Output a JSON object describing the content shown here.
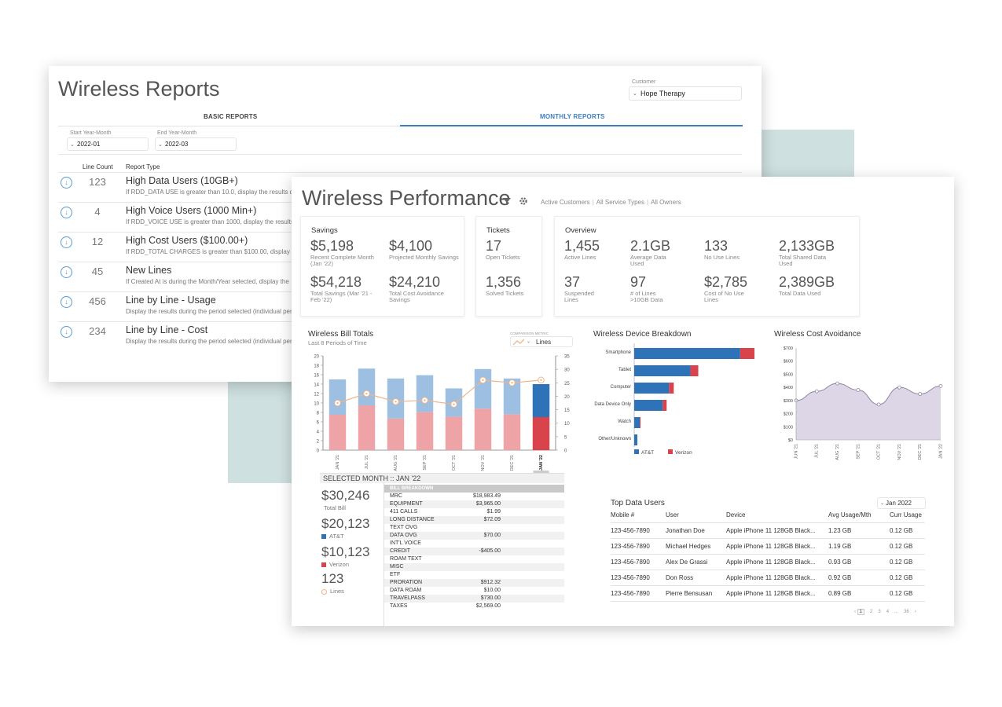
{
  "reports": {
    "title": "Wireless Reports",
    "customer_label": "Customer",
    "customer_value": "Hope Therapy",
    "tabs": [
      "BASIC REPORTS",
      "MONTHLY REPORTS"
    ],
    "start_label": "Start Year-Month",
    "start_value": "2022-01",
    "end_label": "End Year-Month",
    "end_value": "2022-03",
    "col_line_count": "Line Count",
    "col_report_type": "Report Type",
    "rows": [
      {
        "count": "123",
        "title": "High Data Users (10GB+)",
        "desc": "If RDD_DATA USE is greater than 10.0, display the results du"
      },
      {
        "count": "4",
        "title": "High Voice Users (1000 Min+)",
        "desc": "If RDD_VOICE USE is greater than 1000, display the results d"
      },
      {
        "count": "12",
        "title": "High Cost Users ($100.00+)",
        "desc": "If RDD_TOTAL CHARGES is greater than $100.00, display th"
      },
      {
        "count": "45",
        "title": "New Lines",
        "desc": "If Created At is during the Month/Year selected, display the"
      },
      {
        "count": "456",
        "title": "Line by Line - Usage",
        "desc": "Display the results during the period selected (individual per"
      },
      {
        "count": "234",
        "title": "Line by Line - Cost",
        "desc": "Display the results during the period selected (individual per"
      }
    ]
  },
  "perf": {
    "title": "Wireless Performance",
    "filters": [
      "Active Customers",
      "All Service Types",
      "All Owners"
    ],
    "savings": {
      "title": "Savings",
      "stats": [
        {
          "value": "$5,198",
          "label": "Recent Complete Month (Jan '22)"
        },
        {
          "value": "$4,100",
          "label": "Projected Monthly Savings"
        },
        {
          "value": "$54,218",
          "label": "Total Savings (Mar '21 - Feb '22)"
        },
        {
          "value": "$24,210",
          "label": "Total Cost Avoidance Savings"
        }
      ]
    },
    "tickets": {
      "title": "Tickets",
      "stats": [
        {
          "value": "17",
          "label": "Open Tickets"
        },
        {
          "value": "1,356",
          "label": "Solved Tickets"
        }
      ]
    },
    "overview": {
      "title": "Overview",
      "stats": [
        {
          "value": "1,455",
          "label": "Active Lines"
        },
        {
          "value": "2.1GB",
          "label": "Average Data Used"
        },
        {
          "value": "133",
          "label": "No Use Lines"
        },
        {
          "value": "2,133GB",
          "label": "Total Shared Data Used"
        },
        {
          "value": "37",
          "label": "Suspended Lines"
        },
        {
          "value": "97",
          "label": "# of Lines >10GB Data"
        },
        {
          "value": "$2,785",
          "label": "Cost of No Use Lines"
        },
        {
          "value": "2,389GB",
          "label": "Total Data Used"
        }
      ]
    },
    "bill": {
      "title": "Wireless Bill Totals",
      "subtitle": "Last 8 Periods of Time",
      "comparison_label": "COMPARISON METRIC",
      "comparison_value": "Lines",
      "selected_month": "SELECTED MONTH :: JAN '22",
      "total_bill": "$30,246",
      "total_bill_label": "Total Bill",
      "att_value": "$20,123",
      "att_label": "AT&T",
      "verizon_value": "$10,123",
      "verizon_label": "Verizon",
      "lines_value": "123",
      "lines_label": "Lines",
      "breakdown_title": "BILL BREAKDOWN",
      "breakdown": [
        {
          "k": "MRC",
          "v": "$18,983.49"
        },
        {
          "k": "EQUIPMENT",
          "v": "$3,965.00"
        },
        {
          "k": "411 CALLS",
          "v": "$1.99"
        },
        {
          "k": "LONG DISTANCE",
          "v": "$72.09"
        },
        {
          "k": "TEXT OVG",
          "v": ""
        },
        {
          "k": "DATA OVG",
          "v": "$70.00"
        },
        {
          "k": "INT'L VOICE",
          "v": ""
        },
        {
          "k": "CREDIT",
          "v": "-$405.00"
        },
        {
          "k": "ROAM TEXT",
          "v": ""
        },
        {
          "k": "MISC",
          "v": ""
        },
        {
          "k": "ETF",
          "v": ""
        },
        {
          "k": "PRORATION",
          "v": "$912.32"
        },
        {
          "k": "DATA ROAM",
          "v": "$10.00"
        },
        {
          "k": "TRAVELPASS",
          "v": "$730.00"
        },
        {
          "k": "TAXES",
          "v": "$2,569.00"
        }
      ]
    },
    "device_title": "Wireless Device Breakdown",
    "avoid_title": "Wireless Cost Avoidance",
    "top_users": {
      "title": "Top Data Users",
      "period": "Jan 2022",
      "columns": [
        "Mobile #",
        "User",
        "Device",
        "Avg Usage/Mth",
        "Curr Usage"
      ],
      "rows": [
        [
          "123-456-7890",
          "Jonathan Doe",
          "Apple iPhone 11 128GB Black...",
          "1.23 GB",
          "0.12 GB"
        ],
        [
          "123-456-7890",
          "Michael Hedges",
          "Apple iPhone 11 128GB Black...",
          "1.19 GB",
          "0.12 GB"
        ],
        [
          "123-456-7890",
          "Alex De Grassi",
          "Apple iPhone 11 128GB Black...",
          "0.93 GB",
          "0.12 GB"
        ],
        [
          "123-456-7890",
          "Don Ross",
          "Apple iPhone 11 128GB Black...",
          "0.92 GB",
          "0.12 GB"
        ],
        [
          "123-456-7890",
          "Pierre Bensusan",
          "Apple iPhone 11 128GB Black...",
          "0.89 GB",
          "0.12 GB"
        ]
      ],
      "pages": [
        "1",
        "2",
        "3",
        "4",
        "...",
        "36"
      ]
    },
    "colors": {
      "att": "#2e73b8",
      "verizon": "#d9434b",
      "att_light": "#9dc0e2",
      "verizon_light": "#eea4a7",
      "line": "#f0b48a",
      "area": "#ddd6e6",
      "area_line": "#8f84a5"
    }
  },
  "chart_data": [
    {
      "type": "bar",
      "title": "Wireless Bill Totals",
      "subtitle": "Last 8 Periods of Time",
      "categories": [
        "JAN '21",
        "JUL '21",
        "AUG '21",
        "SEP '21",
        "OCT '21",
        "NOV '21",
        "DEC '21",
        "JAN '22"
      ],
      "stacked": true,
      "series": [
        {
          "name": "Verizon",
          "values": [
            7.5,
            9.5,
            6.7,
            8.1,
            7.1,
            8.8,
            7.6,
            7.0
          ]
        },
        {
          "name": "AT&T",
          "values": [
            7.5,
            7.8,
            8.5,
            7.8,
            6.0,
            8.4,
            7.6,
            7.0
          ]
        },
        {
          "name": "Lines",
          "axis": "right",
          "type": "line",
          "values": [
            17.5,
            21.0,
            18.0,
            18.5,
            17.0,
            26.0,
            25.0,
            26.0
          ]
        }
      ],
      "yticks": [
        0,
        2,
        4,
        6,
        8,
        10,
        12,
        14,
        16,
        18,
        20
      ],
      "ylim": [
        0,
        20
      ],
      "y2ticks": [
        0,
        5,
        10,
        15,
        20,
        25,
        30,
        35
      ],
      "y2lim": [
        0,
        35
      ]
    },
    {
      "type": "bar",
      "orientation": "horizontal",
      "title": "Wireless Device Breakdown",
      "categories": [
        "Smartphone",
        "Tablet",
        "Computer",
        "Data Device Only",
        "Watch",
        "Other/Unknown"
      ],
      "series": [
        {
          "name": "AT&T",
          "values": [
            134,
            71,
            44,
            36,
            7,
            4
          ]
        },
        {
          "name": "Verizon",
          "values": [
            18,
            10,
            6,
            5,
            1,
            0
          ]
        }
      ]
    },
    {
      "type": "area",
      "title": "Wireless Cost Avoidance",
      "categories": [
        "JUN '21",
        "JUL '21",
        "AUG '21",
        "SEP '21",
        "OCT '21",
        "NOV '21",
        "DEC '21",
        "JAN '22"
      ],
      "values": [
        300,
        370,
        430,
        380,
        270,
        400,
        350,
        410
      ],
      "yticks": [
        "$0",
        "$100",
        "$200",
        "$300",
        "$400",
        "$500",
        "$600",
        "$700"
      ],
      "ylim": [
        0,
        700
      ]
    }
  ]
}
